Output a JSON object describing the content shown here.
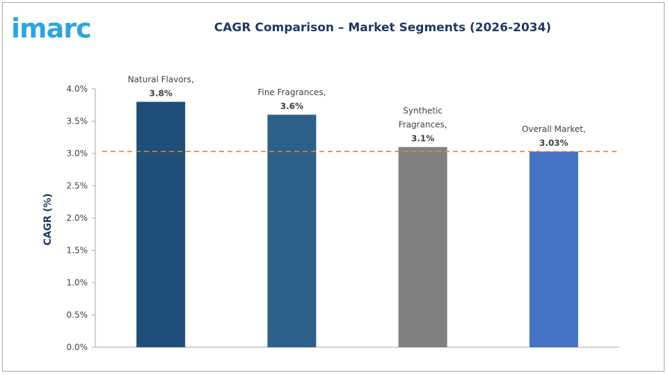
{
  "header": {
    "logo_text": "imarc",
    "title": "CAGR Comparison – Market Segments (2026-2034)"
  },
  "colors": {
    "logo": "#2fa4dc",
    "title": "#1f3864",
    "axis": "#a6a6a6",
    "reference_line": "#ed7d31"
  },
  "chart_data": {
    "type": "bar",
    "title": "CAGR Comparison – Market Segments (2026-2034)",
    "ylabel": "CAGR (%)",
    "xlabel": "",
    "ylim": [
      0,
      4.0
    ],
    "yticks": [
      0.0,
      0.5,
      1.0,
      1.5,
      2.0,
      2.5,
      3.0,
      3.5,
      4.0
    ],
    "ytick_labels": [
      "0.0%",
      "0.5%",
      "1.0%",
      "1.5%",
      "2.0%",
      "2.5%",
      "3.0%",
      "3.5%",
      "4.0%"
    ],
    "grid": false,
    "legend": "none",
    "reference_line": {
      "value": 3.03,
      "style": "dashed"
    },
    "bars": [
      {
        "category": "Natural Flavors",
        "value": 3.8,
        "label_lines": [
          "Natural Flavors,",
          "3.8%"
        ],
        "color": "#1f4e79"
      },
      {
        "category": "Fine Fragrances",
        "value": 3.6,
        "label_lines": [
          "Fine Fragrances,",
          "3.6%"
        ],
        "color": "#2e6189"
      },
      {
        "category": "Synthetic Fragrances",
        "value": 3.1,
        "label_lines": [
          "Synthetic",
          "Fragrances,",
          "3.1%"
        ],
        "color": "#808080"
      },
      {
        "category": "Overall Market",
        "value": 3.03,
        "label_lines": [
          "Overall Market,",
          "3.03%"
        ],
        "color": "#4472c4"
      }
    ]
  }
}
